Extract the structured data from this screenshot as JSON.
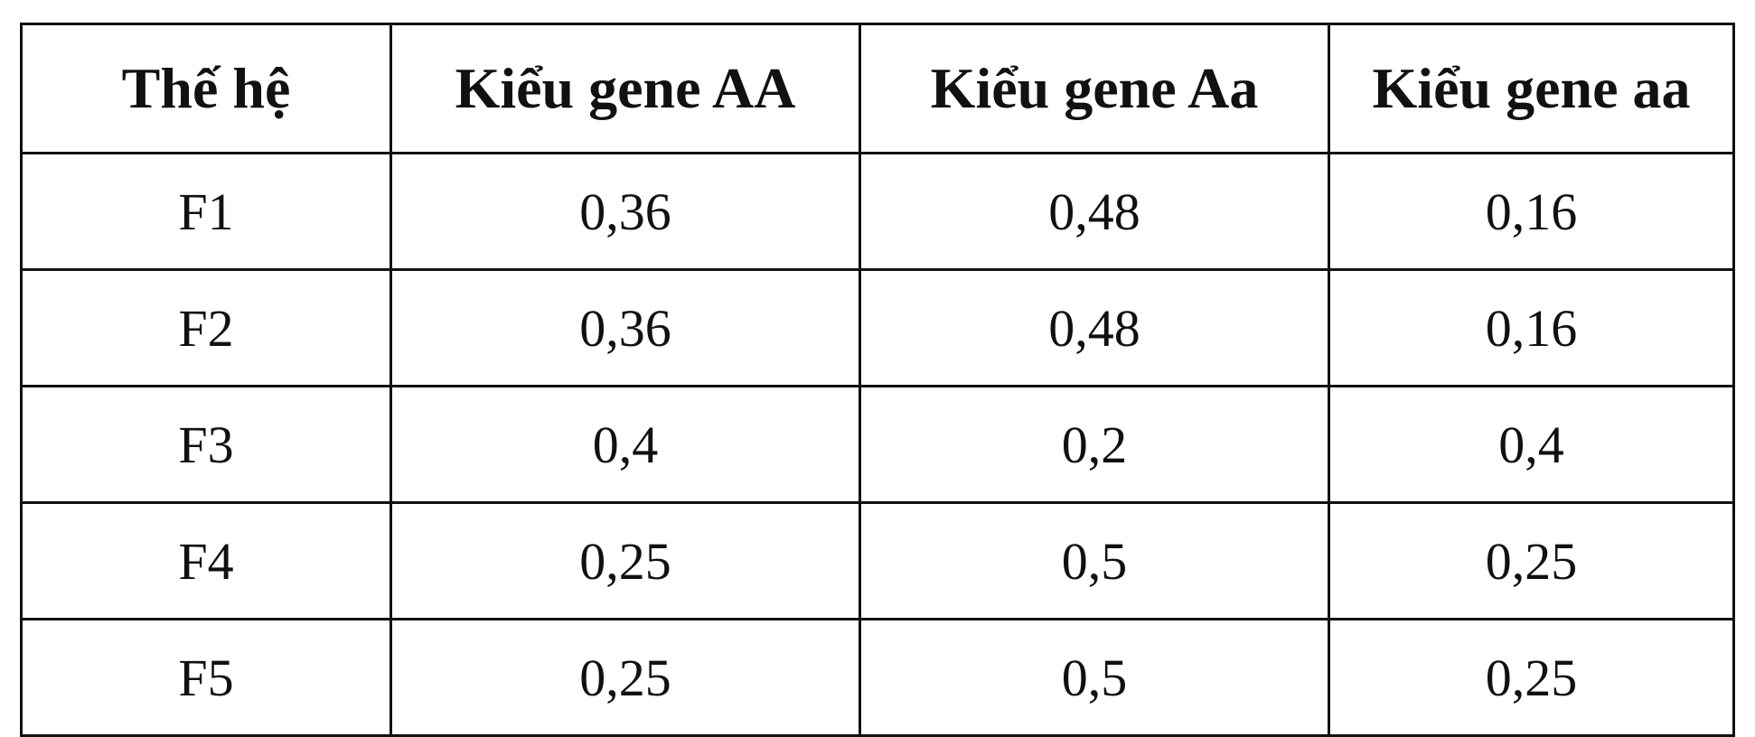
{
  "table": {
    "header": [
      "Thế hệ",
      "Kiểu gene AA",
      "Kiểu gene Aa",
      "Kiểu gene aa"
    ],
    "rows": [
      [
        "F1",
        "0,36",
        "0,48",
        "0,16"
      ],
      [
        "F2",
        "0,36",
        "0,48",
        "0,16"
      ],
      [
        "F3",
        "0,4",
        "0,2",
        "0,4"
      ],
      [
        "F4",
        "0,25",
        "0,5",
        "0,25"
      ],
      [
        "F5",
        "0,25",
        "0,5",
        "0,25"
      ]
    ]
  }
}
